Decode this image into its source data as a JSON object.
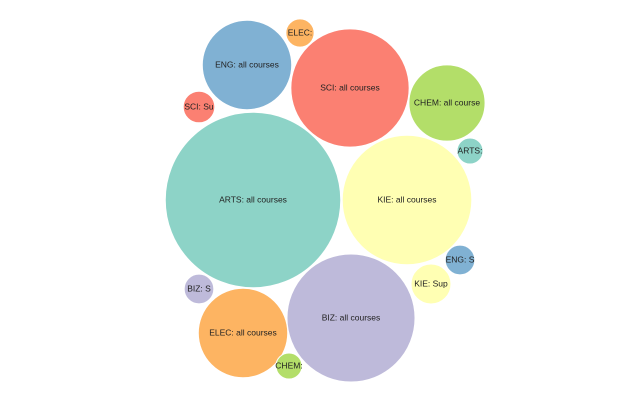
{
  "chart_data": {
    "type": "bubble",
    "categories": [
      "ARTS: all courses",
      "KIE: all courses",
      "BIZ: all courses",
      "SCI: all courses",
      "ENG: all courses",
      "ELEC: all courses",
      "CHEM: all course",
      "ELEC:",
      "SCI: Su",
      "ARTS:",
      "ENG: S",
      "KIE: Sup",
      "BIZ: S",
      "CHEM:"
    ],
    "values": [
      7700,
      4200,
      4100,
      3500,
      2000,
      2000,
      1450,
      200,
      250,
      170,
      220,
      400,
      220,
      170
    ],
    "colors": [
      "#8dd3c7",
      "#ffffb3",
      "#bebada",
      "#fb8072",
      "#80b1d3",
      "#fdb462",
      "#b3de69",
      "#fdb462",
      "#fb8072",
      "#8dd3c7",
      "#80b1d3",
      "#ffffb3",
      "#bebada",
      "#b3de69"
    ]
  }
}
